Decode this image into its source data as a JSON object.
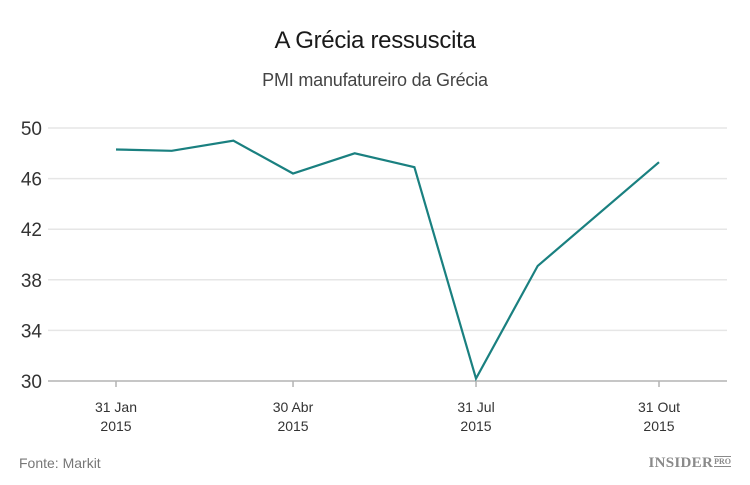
{
  "header": {
    "title": "A Grécia ressuscita",
    "subtitle": "PMI manufatureiro da Grécia"
  },
  "footer": {
    "source": "Fonte: Markit",
    "brand": "INSIDER",
    "brand_suffix": "PRO"
  },
  "colors": {
    "line": "#1a8080",
    "grid": "#e6e6e6",
    "axis": "#b3b3b3"
  },
  "chart_data": {
    "type": "line",
    "title": "A Grécia ressuscita",
    "subtitle": "PMI manufatureiro da Grécia",
    "xlabel": "",
    "ylabel": "",
    "ylim": [
      30,
      50
    ],
    "yticks": [
      50,
      46,
      42,
      38,
      34,
      30
    ],
    "xticks": [
      {
        "label": "31 Jan",
        "year": "2015"
      },
      {
        "label": "30 Abr",
        "year": "2015"
      },
      {
        "label": "31 Jul",
        "year": "2015"
      },
      {
        "label": "31 Out",
        "year": "2015"
      }
    ],
    "grid": true,
    "legend": null,
    "x": [
      "2015-01-31",
      "2015-02-28",
      "2015-03-31",
      "2015-04-30",
      "2015-05-31",
      "2015-06-30",
      "2015-07-31",
      "2015-08-31",
      "2015-10-31"
    ],
    "series": [
      {
        "name": "PMI manufatureiro da Grécia",
        "values": [
          48.3,
          48.2,
          49.0,
          46.4,
          48.0,
          46.9,
          30.2,
          39.1,
          47.3
        ]
      }
    ],
    "source": "Fonte: Markit"
  }
}
